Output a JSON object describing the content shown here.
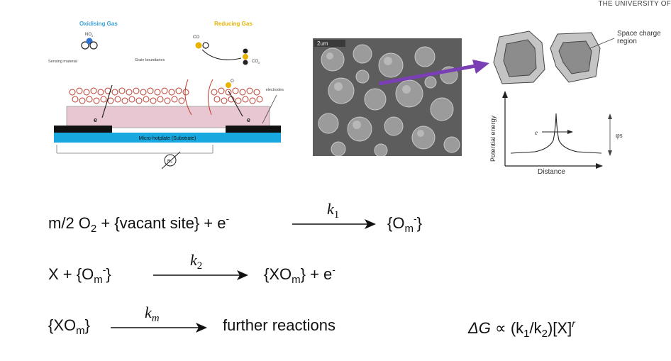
{
  "header": {
    "institution": "THE UNIVERSITY OF"
  },
  "sensor_diagram": {
    "oxidising_gas": "Oxidising Gas",
    "reducing_gas": "Reducing Gas",
    "no2": "NO",
    "no2_sub": "2",
    "co": "CO",
    "co2": "CO",
    "co2_sub": "2",
    "o": "O",
    "sensing_material": "Sensing material",
    "grain_boundaries": "Grain boundaries",
    "electrodes": "electrodes",
    "electron": "e",
    "substrate": "Micro-hotplate (Substrate)",
    "resistance": "R",
    "resistance_sub": "S",
    "colors": {
      "oxidising": "#3aa0d8",
      "reducing": "#e7b300",
      "grain": "#c0392b",
      "substrate": "#17a8e0",
      "film": "#e8c6d2"
    }
  },
  "sem_image": {
    "scale_label": "2um"
  },
  "barrier_diagram": {
    "space_charge_region": "Space charge region",
    "potential_energy": "Potential energy",
    "distance": "Distance",
    "electron": "e",
    "barrier_height": "φs",
    "arrow_color": "#7b3fb5"
  },
  "equations": {
    "eq1": {
      "lhs": "m/2 O",
      "lhs_sub": "2",
      "lhs_rest": " + {vacant site} + e",
      "lhs_sup": "-",
      "k": "k",
      "k_sub": "1",
      "rhs": "{O",
      "rhs_sub": "m",
      "rhs_sup": "-",
      "rhs_end": "}"
    },
    "eq2": {
      "lhs": "X + {O",
      "lhs_sub": "m",
      "lhs_sup": "-",
      "lhs_end": "}",
      "k": "k",
      "k_sub": "2",
      "rhs": "{XO",
      "rhs_sub": "m",
      "rhs_rest": "} + e",
      "rhs_sup": "-"
    },
    "eq3": {
      "lhs": "{XO",
      "lhs_sub": "m",
      "lhs_end": "}",
      "k": "k",
      "k_sub": "m",
      "rhs": "further reactions"
    },
    "relation": {
      "delta": "ΔG",
      "prop": "∝",
      "open": "(k",
      "k1_sub": "1",
      "slash": "/k",
      "k2_sub": "2",
      "close": ")[X]",
      "exp": "r"
    }
  }
}
